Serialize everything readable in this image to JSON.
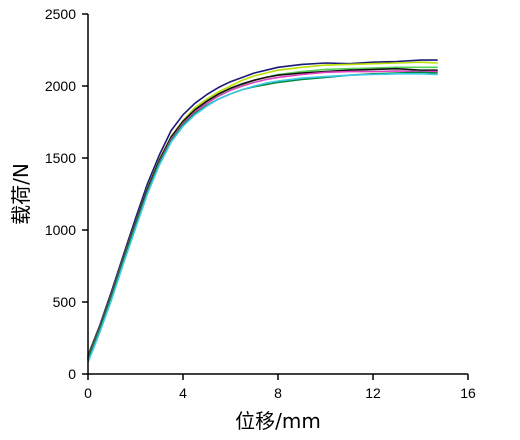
{
  "chart_data": {
    "type": "line",
    "title": "",
    "xlabel": "位移/mm",
    "ylabel": "载荷/N",
    "xlim": [
      0,
      16
    ],
    "ylim": [
      0,
      2500
    ],
    "xticks": [
      0,
      4,
      8,
      12,
      16
    ],
    "xtick_labels": [
      "0",
      "4",
      "8",
      "12",
      "16"
    ],
    "yticks": [
      0,
      500,
      1000,
      1500,
      2000,
      2500
    ],
    "ytick_labels": [
      "0",
      "500",
      "1000",
      "1500",
      "2000",
      "2500"
    ],
    "grid": false,
    "legend": "none",
    "series": [
      {
        "color": "#1a1a7a",
        "x": [
          0,
          0.5,
          1,
          1.5,
          2,
          2.5,
          3,
          3.5,
          4,
          4.5,
          5,
          5.5,
          6,
          6.5,
          7,
          7.5,
          8,
          9,
          10,
          11,
          12,
          13,
          14,
          14.7
        ],
        "y": [
          130,
          340,
          580,
          830,
          1080,
          1320,
          1520,
          1690,
          1800,
          1880,
          1940,
          1990,
          2030,
          2060,
          2090,
          2110,
          2130,
          2150,
          2160,
          2155,
          2165,
          2170,
          2180,
          2180
        ]
      },
      {
        "color": "#b8e000",
        "x": [
          0,
          0.5,
          1,
          1.5,
          2,
          2.5,
          3,
          3.5,
          4,
          4.5,
          5,
          5.5,
          6,
          6.5,
          7,
          7.5,
          8,
          9,
          10,
          11,
          12,
          13,
          14,
          14.7
        ],
        "y": [
          120,
          330,
          560,
          810,
          1050,
          1290,
          1490,
          1650,
          1760,
          1850,
          1910,
          1960,
          2000,
          2040,
          2070,
          2090,
          2110,
          2130,
          2145,
          2150,
          2155,
          2160,
          2165,
          2160
        ]
      },
      {
        "color": "#55d455",
        "x": [
          0,
          0.5,
          1,
          1.5,
          2,
          2.5,
          3,
          3.5,
          4,
          4.5,
          5,
          5.5,
          6,
          6.5,
          7,
          7.5,
          8,
          9,
          10,
          11,
          12,
          13,
          14,
          14.7
        ],
        "y": [
          110,
          320,
          550,
          800,
          1040,
          1280,
          1480,
          1640,
          1750,
          1830,
          1890,
          1940,
          1980,
          2010,
          2040,
          2060,
          2080,
          2100,
          2115,
          2120,
          2125,
          2130,
          2130,
          2130
        ]
      },
      {
        "color": "#111111",
        "x": [
          0,
          0.5,
          1,
          1.5,
          2,
          2.5,
          3,
          3.5,
          4,
          4.5,
          5,
          5.5,
          6,
          6.5,
          7,
          7.5,
          8,
          9,
          10,
          11,
          12,
          13,
          14,
          14.7
        ],
        "y": [
          115,
          325,
          555,
          805,
          1045,
          1285,
          1485,
          1645,
          1755,
          1835,
          1895,
          1945,
          1985,
          2015,
          2040,
          2060,
          2075,
          2090,
          2100,
          2110,
          2115,
          2120,
          2110,
          2110
        ]
      },
      {
        "color": "#e040c0",
        "x": [
          0,
          0.5,
          1,
          1.5,
          2,
          2.5,
          3,
          3.5,
          4,
          4.5,
          5,
          5.5,
          6,
          6.5,
          7,
          7.5,
          8,
          9,
          10,
          11,
          12,
          13,
          14,
          14.7
        ],
        "y": [
          105,
          315,
          545,
          795,
          1035,
          1270,
          1470,
          1630,
          1740,
          1820,
          1880,
          1930,
          1970,
          2000,
          2025,
          2045,
          2060,
          2080,
          2095,
          2100,
          2100,
          2105,
          2100,
          2100
        ]
      },
      {
        "color": "#008a3c",
        "x": [
          0,
          0.5,
          1,
          1.5,
          2,
          2.5,
          3,
          3.5,
          4,
          4.5,
          5,
          5.5,
          6,
          6.5,
          7,
          7.5,
          8,
          9,
          10,
          11,
          12,
          13,
          14,
          14.7
        ],
        "y": [
          100,
          310,
          540,
          790,
          1030,
          1265,
          1465,
          1620,
          1730,
          1810,
          1865,
          1910,
          1945,
          1975,
          1995,
          2010,
          2025,
          2045,
          2060,
          2075,
          2085,
          2090,
          2095,
          2090
        ]
      },
      {
        "color": "#40c8e8",
        "x": [
          0,
          0.5,
          1,
          1.5,
          2,
          2.5,
          3,
          3.5,
          4,
          4.5,
          5,
          5.5,
          6,
          6.5,
          7,
          7.5,
          8,
          9,
          10,
          11,
          12,
          13,
          14,
          14.7
        ],
        "y": [
          80,
          290,
          520,
          770,
          1010,
          1250,
          1450,
          1610,
          1720,
          1800,
          1860,
          1910,
          1945,
          1975,
          2000,
          2020,
          2035,
          2055,
          2065,
          2075,
          2080,
          2085,
          2085,
          2080
        ]
      }
    ]
  }
}
